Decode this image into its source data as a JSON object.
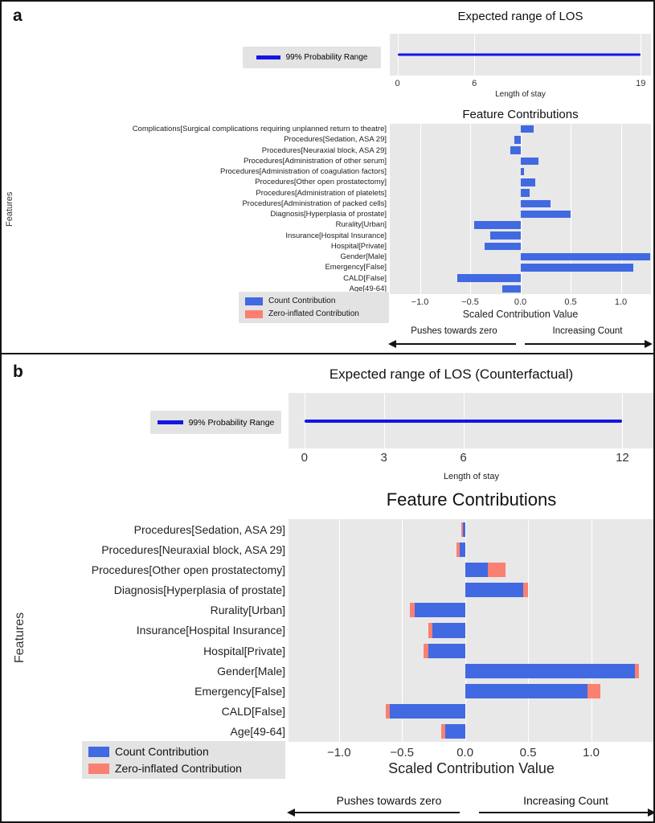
{
  "panel_labels": {
    "a": "a",
    "b": "b"
  },
  "colors": {
    "count_bar": "#4169e1",
    "zero_inflated_bar": "#fa8072",
    "probability_line": "#1515e6",
    "plot_background": "#e8e8e8",
    "legend_background": "#e3e3e3"
  },
  "chart_data": [
    {
      "panel": "a",
      "type": "line",
      "title": "Expected range of LOS",
      "legend": "99% Probability Range",
      "xlabel": "Length of stay",
      "xticks": [
        0,
        6,
        19
      ],
      "range": [
        0,
        19
      ],
      "xlim": [
        -0.6,
        19.8
      ]
    },
    {
      "panel": "a",
      "type": "bar",
      "title": "Feature Contributions",
      "xlabel": "Scaled Contribution Value",
      "ylabel": "Features",
      "annotations": [
        "Pushes towards zero",
        "Increasing Count"
      ],
      "xticks": [
        -1.0,
        -0.5,
        0.0,
        0.5,
        1.0
      ],
      "xlim": [
        -1.3,
        1.3
      ],
      "categories": [
        "Complications[Surgical complications requiring unplanned return to theatre]",
        "Procedures[Sedation, ASA 29]",
        "Procedures[Neuraxial block, ASA 29]",
        "Procedures[Administration of other serum]",
        "Procedures[Administration of coagulation factors]",
        "Procedures[Other open prostatectomy]",
        "Procedures[Administration of platelets]",
        "Procedures[Administration of packed cells]",
        "Diagnosis[Hyperplasia of prostate]",
        "Rurality[Urban]",
        "Insurance[Hospital Insurance]",
        "Hospital[Private]",
        "Gender[Male]",
        "Emergency[False]",
        "CALD[False]",
        "Age[49-64]"
      ],
      "series": [
        {
          "name": "Count Contribution",
          "color": "#4169e1",
          "values": [
            0.13,
            -0.06,
            -0.1,
            0.18,
            0.04,
            0.15,
            0.09,
            0.3,
            0.5,
            -0.46,
            -0.3,
            -0.36,
            1.29,
            1.12,
            -0.63,
            -0.18
          ]
        },
        {
          "name": "Zero-inflated Contribution",
          "color": "#fa8072",
          "values": [
            0,
            0,
            0,
            0,
            0,
            0,
            0,
            0,
            0,
            0,
            0,
            0,
            0,
            0,
            0,
            0
          ]
        }
      ]
    },
    {
      "panel": "b",
      "type": "line",
      "title": "Expected range of LOS (Counterfactual)",
      "legend": "99% Probability Range",
      "xlabel": "Length of stay",
      "xticks": [
        0,
        3,
        6,
        12
      ],
      "range": [
        0,
        12
      ],
      "xlim": [
        -0.6,
        13.2
      ]
    },
    {
      "panel": "b",
      "type": "bar",
      "title": "Feature Contributions",
      "xlabel": "Scaled Contribution Value",
      "ylabel": "Features",
      "annotations": [
        "Pushes towards zero",
        "Increasing Count"
      ],
      "xticks": [
        -1.0,
        -0.5,
        0.0,
        0.5,
        1.0
      ],
      "xlim": [
        -1.4,
        1.5
      ],
      "categories": [
        "Procedures[Sedation, ASA 29]",
        "Procedures[Neuraxial block, ASA 29]",
        "Procedures[Other open prostatectomy]",
        "Diagnosis[Hyperplasia of prostate]",
        "Rurality[Urban]",
        "Insurance[Hospital Insurance]",
        "Hospital[Private]",
        "Gender[Male]",
        "Emergency[False]",
        "CALD[False]",
        "Age[49-64]"
      ],
      "series": [
        {
          "name": "Count Contribution",
          "color": "#4169e1",
          "values": [
            -0.02,
            -0.04,
            0.18,
            0.46,
            -0.4,
            -0.26,
            -0.29,
            1.35,
            0.97,
            -0.6,
            -0.16
          ]
        },
        {
          "name": "Zero-inflated Contribution",
          "color": "#fa8072",
          "values": [
            -0.01,
            -0.03,
            0.14,
            0.04,
            -0.04,
            -0.03,
            -0.04,
            0.03,
            0.1,
            -0.03,
            -0.03
          ]
        }
      ]
    }
  ]
}
